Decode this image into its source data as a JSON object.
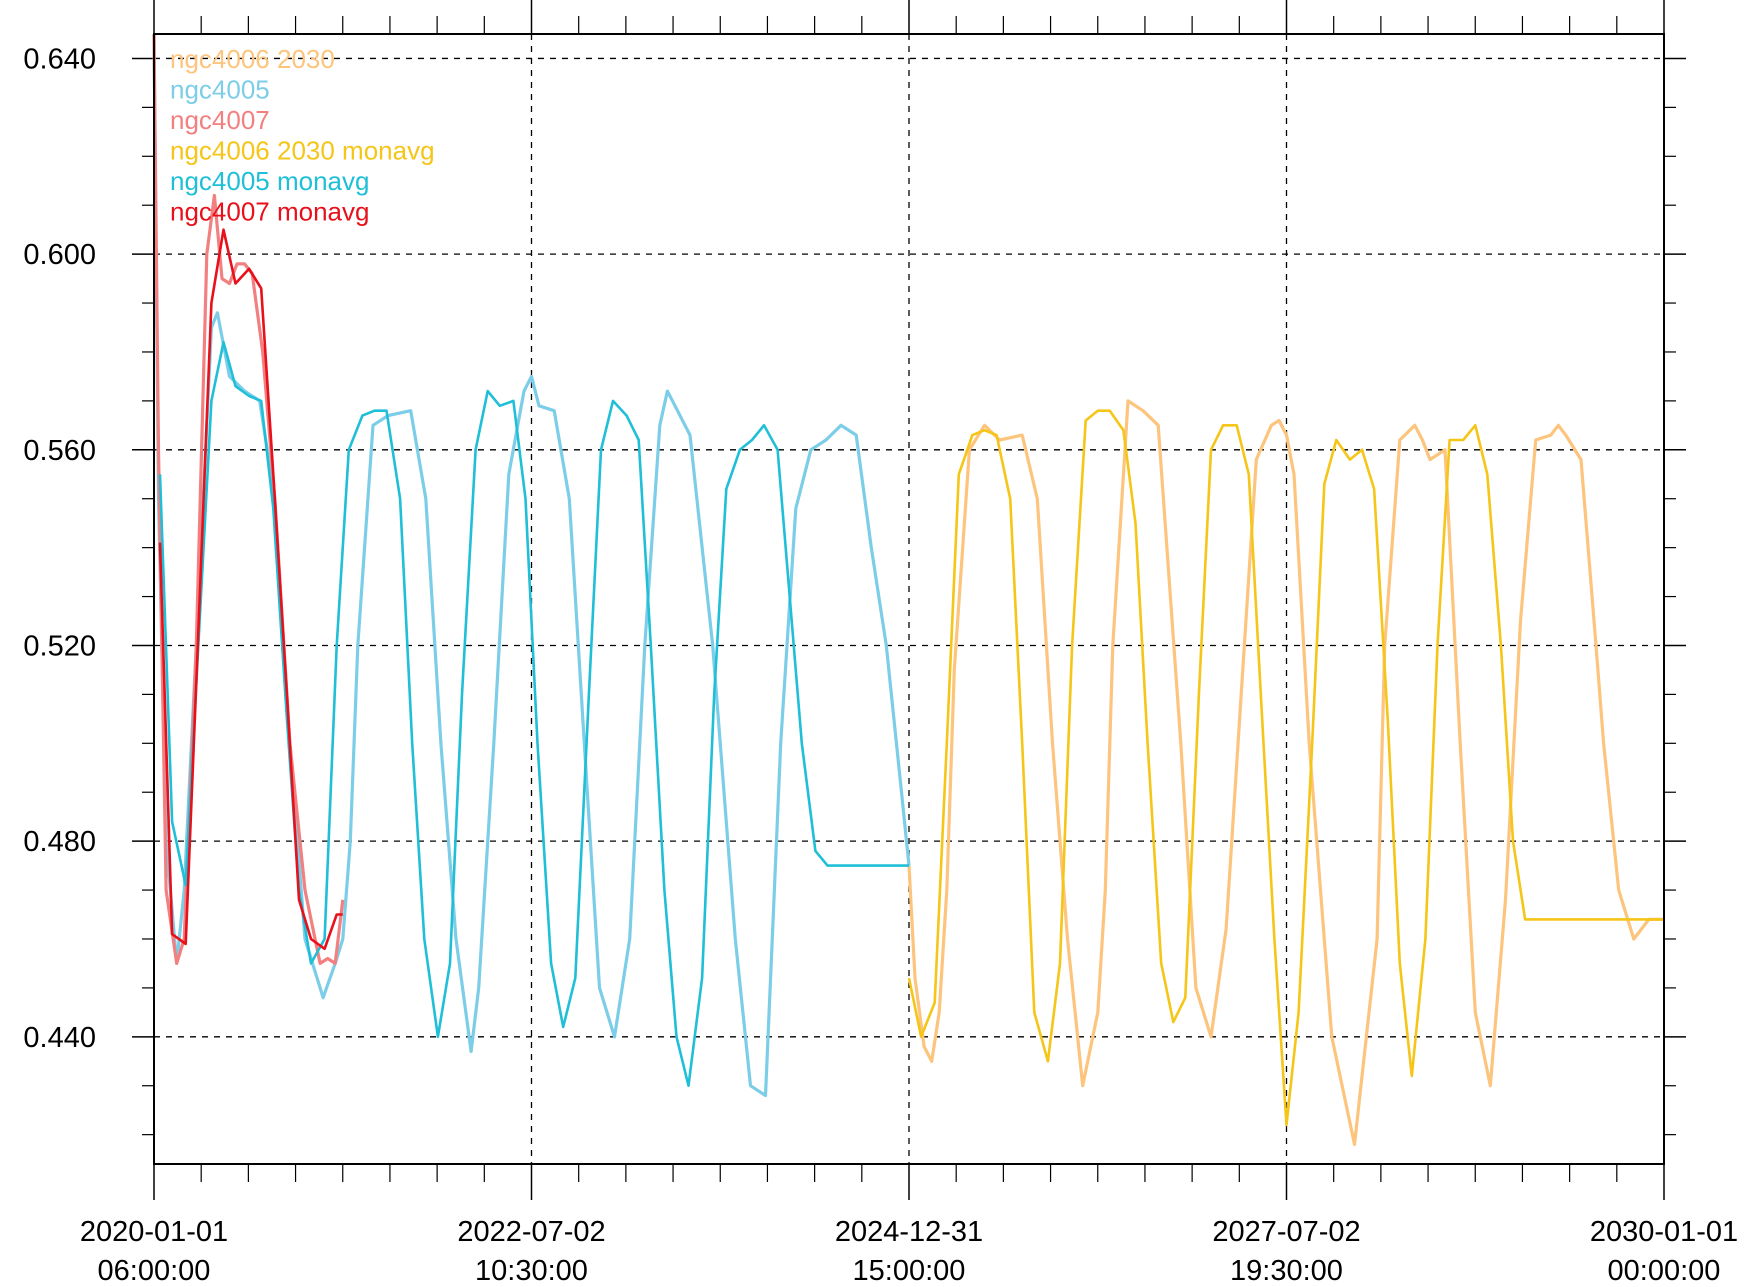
{
  "chart_data": {
    "type": "line",
    "title": "",
    "xlabel": "",
    "ylabel": "",
    "ylim": [
      0.414,
      0.645
    ],
    "yticks": [
      {
        "value": 0.44,
        "label": "0.440"
      },
      {
        "value": 0.48,
        "label": "0.480"
      },
      {
        "value": 0.52,
        "label": "0.520"
      },
      {
        "value": 0.56,
        "label": "0.560"
      },
      {
        "value": 0.6,
        "label": "0.600"
      },
      {
        "value": 0.64,
        "label": "0.640"
      }
    ],
    "xticks": [
      {
        "value": 2020.0,
        "line1": "2020-01-01",
        "line2": "06:00:00"
      },
      {
        "value": 2022.5,
        "line1": "2022-07-02",
        "line2": "10:30:00"
      },
      {
        "value": 2025.0,
        "line1": "2024-12-31",
        "line2": "15:00:00"
      },
      {
        "value": 2027.5,
        "line1": "2027-07-02",
        "line2": "19:30:00"
      },
      {
        "value": 2030.0,
        "line1": "2030-01-01",
        "line2": "00:00:00"
      }
    ],
    "xlim": [
      2020.0,
      2030.0
    ],
    "grid": true,
    "legend_position": "top-left",
    "series": [
      {
        "name": "ngc4006 2030",
        "color": "#fcc47c",
        "x": [
          2025.0,
          2025.04,
          2025.1,
          2025.15,
          2025.2,
          2025.25,
          2025.3,
          2025.4,
          2025.5,
          2025.6,
          2025.75,
          2025.85,
          2025.95,
          2026.05,
          2026.15,
          2026.25,
          2026.3,
          2026.35,
          2026.45,
          2026.5,
          2026.55,
          2026.65,
          2026.8,
          2026.9,
          2027.0,
          2027.1,
          2027.2,
          2027.3,
          2027.4,
          2027.45,
          2027.5,
          2027.55,
          2027.65,
          2027.8,
          2027.95,
          2028.1,
          2028.15,
          2028.25,
          2028.35,
          2028.4,
          2028.45,
          2028.55,
          2028.65,
          2028.75,
          2028.85,
          2028.95,
          2029.05,
          2029.15,
          2029.25,
          2029.3,
          2029.35,
          2029.45,
          2029.55,
          2029.6,
          2029.7,
          2029.8,
          2029.9,
          2030.0
        ],
        "y": [
          0.475,
          0.452,
          0.438,
          0.435,
          0.445,
          0.47,
          0.515,
          0.56,
          0.565,
          0.562,
          0.563,
          0.55,
          0.5,
          0.46,
          0.43,
          0.445,
          0.47,
          0.52,
          0.57,
          0.569,
          0.568,
          0.565,
          0.5,
          0.45,
          0.44,
          0.462,
          0.51,
          0.558,
          0.565,
          0.566,
          0.563,
          0.555,
          0.5,
          0.44,
          0.418,
          0.46,
          0.52,
          0.562,
          0.565,
          0.562,
          0.558,
          0.56,
          0.5,
          0.445,
          0.43,
          0.468,
          0.525,
          0.562,
          0.563,
          0.565,
          0.563,
          0.558,
          0.52,
          0.5,
          0.47,
          0.46,
          0.464,
          0.464
        ]
      },
      {
        "name": "ngc4005",
        "color": "#7ccde8",
        "x": [
          2020.0,
          2020.03,
          2020.08,
          2020.15,
          2020.2,
          2020.28,
          2020.38,
          2020.42,
          2020.5,
          2020.6,
          2020.7,
          2020.8,
          2020.9,
          2021.0,
          2021.1,
          2021.12,
          2021.2,
          2021.25,
          2021.3,
          2021.35,
          2021.45,
          2021.55,
          2021.7,
          2021.8,
          2021.9,
          2022.0,
          2022.1,
          2022.15,
          2022.25,
          2022.35,
          2022.45,
          2022.5,
          2022.55,
          2022.65,
          2022.75,
          2022.85,
          2022.95,
          2023.05,
          2023.15,
          2023.25,
          2023.35,
          2023.4,
          2023.45,
          2023.55,
          2023.7,
          2023.85,
          2023.95,
          2024.05,
          2024.15,
          2024.25,
          2024.35,
          2024.45,
          2024.55,
          2024.65,
          2024.75,
          2024.85,
          2024.95,
          2025.0
        ],
        "y": [
          0.645,
          0.55,
          0.48,
          0.455,
          0.47,
          0.52,
          0.585,
          0.588,
          0.575,
          0.572,
          0.57,
          0.55,
          0.5,
          0.46,
          0.45,
          0.448,
          0.455,
          0.46,
          0.48,
          0.52,
          0.565,
          0.567,
          0.568,
          0.55,
          0.5,
          0.46,
          0.437,
          0.45,
          0.5,
          0.555,
          0.572,
          0.575,
          0.569,
          0.568,
          0.55,
          0.5,
          0.45,
          0.44,
          0.46,
          0.52,
          0.565,
          0.572,
          0.569,
          0.563,
          0.52,
          0.46,
          0.43,
          0.428,
          0.5,
          0.548,
          0.56,
          0.562,
          0.565,
          0.563,
          0.54,
          0.52,
          0.49,
          0.475
        ]
      },
      {
        "name": "ngc4007",
        "color": "#f38080",
        "x": [
          2020.0,
          2020.03,
          2020.08,
          2020.15,
          2020.2,
          2020.28,
          2020.35,
          2020.4,
          2020.45,
          2020.5,
          2020.55,
          2020.6,
          2020.65,
          2020.72,
          2020.8,
          2020.9,
          2021.0,
          2021.1,
          2021.15,
          2021.2,
          2021.25
        ],
        "y": [
          0.645,
          0.56,
          0.47,
          0.455,
          0.46,
          0.52,
          0.6,
          0.612,
          0.595,
          0.594,
          0.598,
          0.598,
          0.596,
          0.58,
          0.55,
          0.5,
          0.47,
          0.455,
          0.456,
          0.455,
          0.468
        ]
      },
      {
        "name": "ngc4006 2030 monavg",
        "color": "#f5c518",
        "x": [
          2025.0,
          2025.08,
          2025.17,
          2025.25,
          2025.33,
          2025.42,
          2025.5,
          2025.58,
          2025.67,
          2025.75,
          2025.83,
          2025.92,
          2026.0,
          2026.08,
          2026.17,
          2026.25,
          2026.33,
          2026.42,
          2026.5,
          2026.58,
          2026.67,
          2026.75,
          2026.83,
          2026.92,
          2027.0,
          2027.08,
          2027.17,
          2027.25,
          2027.33,
          2027.42,
          2027.5,
          2027.58,
          2027.67,
          2027.75,
          2027.83,
          2027.92,
          2028.0,
          2028.08,
          2028.17,
          2028.25,
          2028.33,
          2028.42,
          2028.5,
          2028.58,
          2028.67,
          2028.75,
          2028.83,
          2028.92,
          2029.0,
          2029.08,
          2029.17,
          2029.25,
          2029.33,
          2029.42,
          2029.5,
          2029.58,
          2029.67,
          2029.75,
          2029.83,
          2029.92,
          2030.0
        ],
        "y": [
          0.452,
          0.44,
          0.447,
          0.5,
          0.555,
          0.563,
          0.564,
          0.563,
          0.55,
          0.5,
          0.445,
          0.435,
          0.455,
          0.52,
          0.566,
          0.568,
          0.568,
          0.564,
          0.545,
          0.5,
          0.455,
          0.443,
          0.448,
          0.51,
          0.56,
          0.565,
          0.565,
          0.555,
          0.51,
          0.46,
          0.422,
          0.445,
          0.5,
          0.553,
          0.562,
          0.558,
          0.56,
          0.552,
          0.505,
          0.455,
          0.432,
          0.46,
          0.52,
          0.562,
          0.562,
          0.565,
          0.555,
          0.52,
          0.48,
          0.464,
          0.464,
          0.464,
          0.464,
          0.464,
          0.464,
          0.464,
          0.464,
          0.464,
          0.464,
          0.464,
          0.464
        ]
      },
      {
        "name": "ngc4005 monavg",
        "color": "#1fbfd8",
        "x": [
          2020.04,
          2020.12,
          2020.21,
          2020.29,
          2020.38,
          2020.46,
          2020.54,
          2020.63,
          2020.71,
          2020.79,
          2020.88,
          2020.96,
          2021.04,
          2021.13,
          2021.21,
          2021.29,
          2021.38,
          2021.46,
          2021.54,
          2021.63,
          2021.71,
          2021.79,
          2021.88,
          2021.96,
          2022.04,
          2022.13,
          2022.21,
          2022.29,
          2022.38,
          2022.46,
          2022.54,
          2022.63,
          2022.71,
          2022.79,
          2022.88,
          2022.96,
          2023.04,
          2023.13,
          2023.21,
          2023.29,
          2023.38,
          2023.46,
          2023.54,
          2023.63,
          2023.71,
          2023.79,
          2023.88,
          2023.96,
          2024.04,
          2024.13,
          2024.21,
          2024.29,
          2024.38,
          2024.46,
          2024.54,
          2024.63,
          2024.71,
          2024.79,
          2024.88,
          2024.96,
          2025.0
        ],
        "y": [
          0.555,
          0.484,
          0.471,
          0.518,
          0.57,
          0.582,
          0.573,
          0.571,
          0.57,
          0.548,
          0.505,
          0.47,
          0.455,
          0.46,
          0.52,
          0.56,
          0.567,
          0.568,
          0.568,
          0.55,
          0.5,
          0.46,
          0.44,
          0.455,
          0.51,
          0.56,
          0.572,
          0.569,
          0.57,
          0.55,
          0.5,
          0.455,
          0.442,
          0.452,
          0.51,
          0.56,
          0.57,
          0.567,
          0.562,
          0.52,
          0.47,
          0.44,
          0.43,
          0.452,
          0.51,
          0.552,
          0.56,
          0.562,
          0.565,
          0.56,
          0.53,
          0.5,
          0.478,
          0.475,
          0.475,
          0.475,
          0.475,
          0.475,
          0.475,
          0.475,
          0.475
        ]
      },
      {
        "name": "ngc4007 monavg",
        "color": "#e8101a",
        "x": [
          2020.04,
          2020.12,
          2020.21,
          2020.29,
          2020.38,
          2020.46,
          2020.54,
          2020.63,
          2020.71,
          2020.79,
          2020.88,
          2020.96,
          2021.04,
          2021.13,
          2021.21,
          2021.25
        ],
        "y": [
          0.541,
          0.461,
          0.459,
          0.52,
          0.59,
          0.605,
          0.594,
          0.597,
          0.593,
          0.555,
          0.51,
          0.468,
          0.46,
          0.458,
          0.465,
          0.465
        ]
      }
    ]
  }
}
